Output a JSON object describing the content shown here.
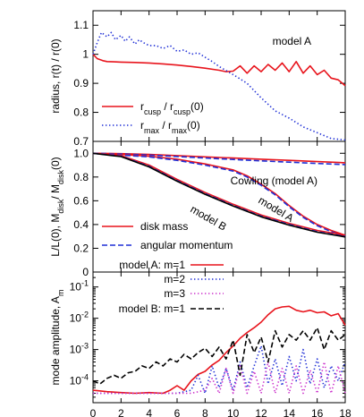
{
  "chart_data": [
    {
      "panel": "top",
      "type": "line",
      "ylabel": "radius, r(t) / r(0)",
      "annotation": "model A",
      "xlim": [
        0,
        18
      ],
      "ylim": [
        0.7,
        1.15
      ],
      "yticks": [
        "0.7",
        "0.8",
        "0.9",
        "1",
        "1.1"
      ],
      "ytick_values": [
        0.7,
        0.8,
        0.9,
        1.0,
        1.1
      ],
      "legend": [
        {
          "pre": "r",
          "sub": "cusp",
          "mid": " / r",
          "sub2": "cusp",
          "post": "(0)",
          "color": "#e8141c",
          "dash": "solid"
        },
        {
          "pre": "r",
          "sub": "max",
          "mid": " / r",
          "sub2": "max",
          "post": "(0)",
          "color": "#1f2fd6",
          "dash": "dotted"
        }
      ],
      "series": [
        {
          "color": "#e8141c",
          "dash": "solid",
          "x": [
            0,
            0.3,
            0.7,
            1,
            1.5,
            2,
            3,
            4,
            5,
            6,
            7,
            8,
            9,
            9.5,
            10,
            10.5,
            11,
            11.5,
            12,
            12.5,
            13,
            13.5,
            14,
            14.5,
            15,
            15.5,
            16,
            16.5,
            17,
            17.5,
            18
          ],
          "y": [
            1.0,
            0.985,
            0.978,
            0.975,
            0.974,
            0.973,
            0.972,
            0.97,
            0.967,
            0.963,
            0.958,
            0.952,
            0.945,
            0.94,
            0.942,
            0.96,
            0.935,
            0.96,
            0.94,
            0.965,
            0.945,
            0.97,
            0.94,
            0.975,
            0.935,
            0.96,
            0.93,
            0.945,
            0.918,
            0.912,
            0.892
          ]
        },
        {
          "color": "#1f2fd6",
          "dash": "dotted",
          "x": [
            0,
            0.3,
            0.6,
            1,
            1.3,
            1.6,
            2,
            2.3,
            2.6,
            3,
            3.3,
            3.6,
            4,
            4.5,
            5,
            5.5,
            6,
            6.5,
            7,
            7.5,
            8,
            8.5,
            9,
            10,
            11,
            12,
            13,
            14,
            15,
            16,
            17,
            18
          ],
          "y": [
            1.0,
            1.04,
            1.075,
            1.06,
            1.075,
            1.05,
            1.065,
            1.045,
            1.06,
            1.035,
            1.05,
            1.04,
            1.03,
            1.03,
            1.02,
            1.03,
            1.01,
            1.015,
            1.0,
            1.005,
            0.99,
            0.975,
            0.958,
            0.93,
            0.9,
            0.85,
            0.805,
            0.78,
            0.75,
            0.73,
            0.71,
            0.705
          ]
        }
      ]
    },
    {
      "panel": "middle",
      "type": "line",
      "ylabel": "L/L(0), M_disk/ M_disk(0)",
      "ylabel_parts": {
        "pre": "L/L(0), M",
        "sub": "disk",
        "mid": "/ M",
        "sub2": "disk",
        "post": "(0)"
      },
      "xlim": [
        0,
        18
      ],
      "ylim": [
        0,
        1.1
      ],
      "yticks": [
        "0",
        "0.2",
        "0.4",
        "0.6",
        "0.8",
        "1.0"
      ],
      "ytick_values": [
        0,
        0.2,
        0.4,
        0.6,
        0.8,
        1.0
      ],
      "annotations": [
        "Cowling (model A)",
        "model A",
        "model B"
      ],
      "legend": [
        {
          "label": "disk mass",
          "color": "#e8141c",
          "dash": "solid"
        },
        {
          "label": "angular momentum",
          "color": "#1f2fd6",
          "dash": "dashed"
        }
      ],
      "series": [
        {
          "group": "Cowling",
          "color": "#e8141c",
          "dash": "solid",
          "x": [
            0,
            2,
            4,
            6,
            8,
            10,
            12,
            14,
            16,
            18
          ],
          "y": [
            1.0,
            0.997,
            0.99,
            0.98,
            0.97,
            0.96,
            0.95,
            0.94,
            0.93,
            0.92
          ]
        },
        {
          "group": "Cowling",
          "color": "#1f2fd6",
          "dash": "dashed",
          "x": [
            0,
            2,
            4,
            6,
            8,
            10,
            12,
            14,
            16,
            18
          ],
          "y": [
            1.0,
            0.995,
            0.985,
            0.973,
            0.96,
            0.948,
            0.936,
            0.925,
            0.914,
            0.905
          ]
        },
        {
          "group": "model A",
          "color": "#e8141c",
          "dash": "solid",
          "x": [
            0,
            2,
            4,
            6,
            8,
            10,
            11,
            12,
            13,
            14,
            15,
            16,
            17,
            18
          ],
          "y": [
            1.0,
            0.99,
            0.975,
            0.95,
            0.91,
            0.86,
            0.81,
            0.74,
            0.66,
            0.56,
            0.47,
            0.4,
            0.35,
            0.31
          ]
        },
        {
          "group": "model A",
          "color": "#1f2fd6",
          "dash": "dashed",
          "x": [
            0,
            2,
            4,
            6,
            8,
            10,
            11,
            12,
            13,
            14,
            15,
            16,
            17,
            18
          ],
          "y": [
            1.0,
            0.985,
            0.97,
            0.94,
            0.9,
            0.85,
            0.8,
            0.73,
            0.65,
            0.55,
            0.46,
            0.39,
            0.34,
            0.3
          ]
        },
        {
          "group": "model B",
          "color": "#e8141c",
          "dash": "solid",
          "x": [
            0,
            2,
            4,
            6,
            8,
            10,
            12,
            14,
            16,
            18
          ],
          "y": [
            1.0,
            0.98,
            0.9,
            0.78,
            0.67,
            0.57,
            0.48,
            0.41,
            0.35,
            0.31
          ]
        },
        {
          "group": "model B",
          "color": "#1f2fd6",
          "dash": "dashed",
          "x": [
            0,
            2,
            4,
            6,
            8,
            10,
            12,
            14,
            16,
            18
          ],
          "y": [
            1.0,
            0.975,
            0.89,
            0.77,
            0.66,
            0.56,
            0.47,
            0.4,
            0.34,
            0.3
          ]
        },
        {
          "group": "model B",
          "color": "#000000",
          "dash": "solid",
          "x": [
            0,
            2,
            4,
            6,
            8,
            10,
            12,
            14,
            16,
            18
          ],
          "y": [
            1.0,
            0.972,
            0.885,
            0.765,
            0.655,
            0.555,
            0.465,
            0.395,
            0.335,
            0.295
          ]
        }
      ]
    },
    {
      "panel": "bottom",
      "type": "line",
      "yscale": "log",
      "ylabel": "mode amplitude, A_m",
      "ylabel_parts": {
        "pre": "mode amplitude, A",
        "sub": "m"
      },
      "xlabel": "time [t_orb]",
      "xlabel_parts": {
        "pre": "time [t",
        "sub": "orb",
        "post": "]"
      },
      "xlim": [
        0,
        18
      ],
      "xticks": [
        "0",
        "2",
        "4",
        "6",
        "8",
        "10",
        "12",
        "14",
        "16",
        "18"
      ],
      "xtick_values": [
        0,
        2,
        4,
        6,
        8,
        10,
        12,
        14,
        16,
        18
      ],
      "ylim": [
        2e-05,
        0.3
      ],
      "yticks": [
        "10^-4",
        "10^-3",
        "10^-2",
        "10^-1"
      ],
      "ytick_exponents": [
        "-4",
        "-3",
        "-2",
        "-1"
      ],
      "ytick_values": [
        0.0001,
        0.001,
        0.01,
        0.1
      ],
      "legend": [
        {
          "label": "model A: m=1",
          "color": "#e8141c",
          "dash": "solid"
        },
        {
          "label": "m=2",
          "color": "#1f2fd6",
          "dash": "dotted"
        },
        {
          "label": "m=3",
          "color": "#cc33cc",
          "dash": "dotted"
        },
        {
          "label": "model B: m=1",
          "color": "#000000",
          "dash": "dashed"
        }
      ],
      "series": [
        {
          "name": "model A: m=1",
          "color": "#e8141c",
          "dash": "solid",
          "x": [
            0,
            1,
            2,
            3,
            4,
            5,
            5.5,
            6,
            6.5,
            7,
            7.5,
            8,
            8.5,
            9,
            9.5,
            10,
            10.5,
            11,
            11.5,
            12,
            12.5,
            13,
            13.5,
            14,
            14.5,
            15,
            15.5,
            16,
            16.5,
            17,
            17.5,
            18
          ],
          "y": [
            5e-05,
            4.5e-05,
            4.2e-05,
            4e-05,
            4.2e-05,
            4e-05,
            5e-05,
            7e-05,
            5e-05,
            0.0001,
            0.00016,
            0.0002,
            0.00032,
            0.00045,
            0.0008,
            0.0013,
            0.0023,
            0.0035,
            0.005,
            0.0075,
            0.013,
            0.02,
            0.023,
            0.024,
            0.018,
            0.016,
            0.018,
            0.015,
            0.016,
            0.012,
            0.014,
            0.006
          ]
        },
        {
          "name": "m=2",
          "color": "#1f2fd6",
          "dash": "dotted",
          "x": [
            0,
            1,
            2,
            3,
            4,
            5,
            6,
            7,
            7.5,
            8,
            8.5,
            9,
            9.5,
            10,
            10.5,
            11,
            11.5,
            12,
            12.5,
            13,
            13.5,
            14,
            14.5,
            15,
            15.5,
            16,
            16.5,
            17,
            17.5,
            18
          ],
          "y": [
            4e-05,
            4e-05,
            4e-05,
            4e-05,
            4e-05,
            4e-05,
            4e-05,
            5e-05,
            0.00015,
            4e-05,
            0.0003,
            6e-05,
            0.00025,
            5e-05,
            0.0004,
            6e-05,
            0.0003,
            0.0013,
            8e-05,
            0.0005,
            7e-05,
            0.0006,
            0.0001,
            0.001,
            8e-05,
            0.0005,
            6e-05,
            0.0003,
            0.0001,
            0.0004
          ]
        },
        {
          "name": "m=3",
          "color": "#cc33cc",
          "dash": "dotted",
          "x": [
            0,
            2,
            4,
            6,
            7,
            8,
            8.5,
            9,
            9.5,
            10,
            10.5,
            11,
            11.5,
            12,
            12.5,
            13,
            13.5,
            14,
            14.5,
            15,
            15.5,
            16,
            16.5,
            17,
            17.5,
            18
          ],
          "y": [
            4e-05,
            4e-05,
            4e-05,
            4e-05,
            4e-05,
            5e-05,
            0.00012,
            4e-05,
            0.00025,
            4e-05,
            0.0003,
            4e-05,
            0.0002,
            4e-05,
            0.0004,
            4e-05,
            0.00025,
            4e-05,
            0.0003,
            4e-05,
            0.00022,
            4e-05,
            0.0004,
            4e-05,
            0.0003,
            4e-05
          ]
        },
        {
          "name": "model B: m=1",
          "color": "#000000",
          "dash": "dashed",
          "x": [
            0,
            0.5,
            1,
            1.5,
            2,
            2.5,
            3,
            3.5,
            4,
            4.5,
            5,
            5.5,
            6,
            6.5,
            7,
            7.5,
            8,
            8.5,
            9,
            9.5,
            10,
            10.5,
            11,
            11.5,
            12,
            12.5,
            13,
            13.5,
            14,
            14.5,
            15,
            15.5,
            16,
            16.5,
            17,
            17.5,
            18
          ],
          "y": [
            0.0001,
            8e-05,
            0.00012,
            0.00015,
            0.00012,
            0.00018,
            0.0002,
            0.0003,
            0.00025,
            0.0004,
            0.0003,
            0.0005,
            0.0004,
            0.0007,
            0.0005,
            0.0008,
            0.0011,
            0.0006,
            0.0012,
            0.0005,
            0.002,
            0.00015,
            0.003,
            0.0008,
            0.0025,
            0.0004,
            0.004,
            0.0012,
            0.003,
            0.002,
            0.004,
            0.002,
            0.005,
            0.001,
            0.004,
            0.002,
            0.003
          ]
        }
      ]
    }
  ]
}
